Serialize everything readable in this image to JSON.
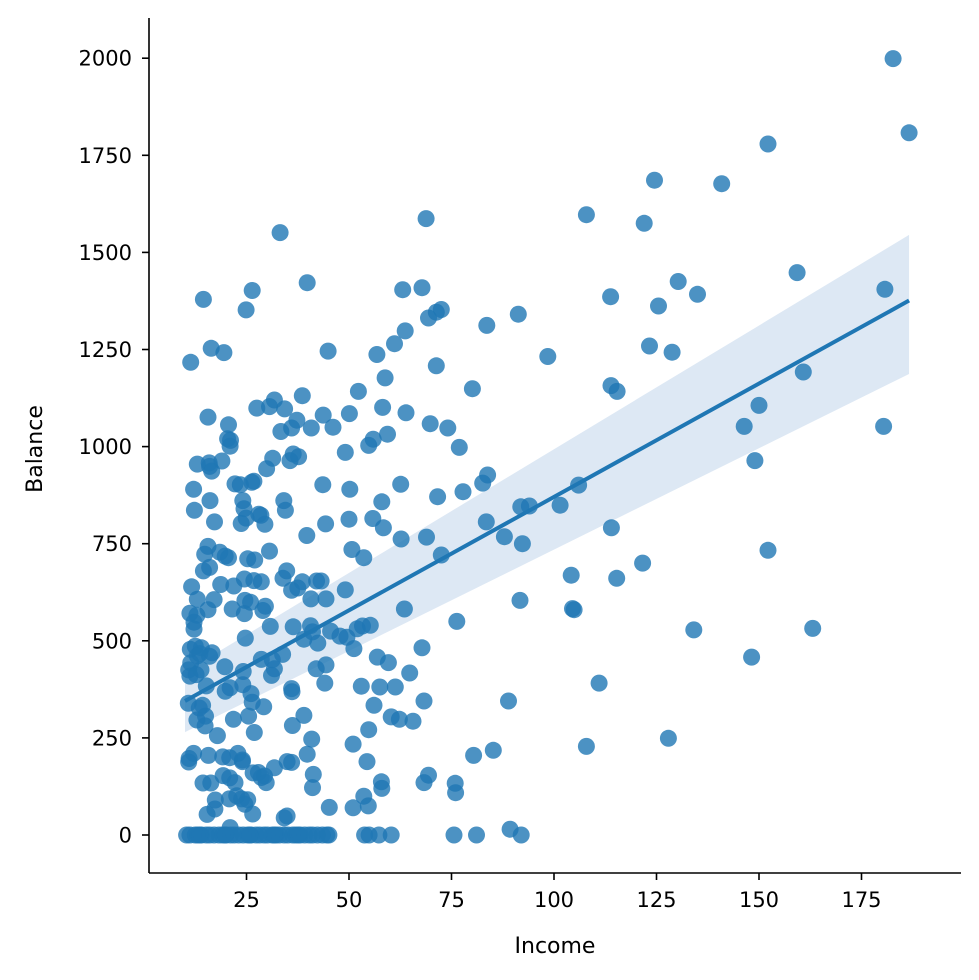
{
  "chart_data": {
    "type": "scatter",
    "title": "",
    "xlabel": "Income",
    "ylabel": "Balance",
    "xlim": [
      2,
      195
    ],
    "ylim": [
      -100,
      2100
    ],
    "xticks": [
      25,
      50,
      75,
      100,
      125,
      150,
      175
    ],
    "yticks": [
      0,
      250,
      500,
      750,
      1000,
      1250,
      1500,
      1750,
      2000
    ],
    "grid": false,
    "colors": {
      "points": "#1f77b4",
      "line": "#1f77b4",
      "band": "#c6d9ec"
    },
    "regression": {
      "x": [
        10,
        186.6
      ],
      "y": [
        345,
        1376
      ],
      "ci_upper_left": 420,
      "ci_lower_left": 265,
      "ci_upper_right": 1545,
      "ci_lower_right": 1187
    },
    "points": [
      [
        182.7,
        1999
      ],
      [
        186.6,
        1808
      ],
      [
        152.2,
        1779
      ],
      [
        124.5,
        1686
      ],
      [
        140.9,
        1677
      ],
      [
        107.9,
        1597
      ],
      [
        122.0,
        1575
      ],
      [
        68.8,
        1587
      ],
      [
        33.2,
        1551
      ],
      [
        159.3,
        1448
      ],
      [
        130.3,
        1425
      ],
      [
        39.8,
        1422
      ],
      [
        67.8,
        1409
      ],
      [
        63.1,
        1404
      ],
      [
        26.4,
        1402
      ],
      [
        180.7,
        1405
      ],
      [
        113.8,
        1386
      ],
      [
        135.0,
        1392
      ],
      [
        14.5,
        1379
      ],
      [
        125.5,
        1362
      ],
      [
        24.9,
        1352
      ],
      [
        72.5,
        1353
      ],
      [
        71.3,
        1346
      ],
      [
        69.4,
        1331
      ],
      [
        91.3,
        1341
      ],
      [
        83.6,
        1312
      ],
      [
        63.7,
        1298
      ],
      [
        61.1,
        1265
      ],
      [
        56.8,
        1237
      ],
      [
        98.5,
        1232
      ],
      [
        44.9,
        1246
      ],
      [
        16.4,
        1253
      ],
      [
        19.5,
        1242
      ],
      [
        123.3,
        1259
      ],
      [
        128.8,
        1243
      ],
      [
        11.4,
        1217
      ],
      [
        71.3,
        1208
      ],
      [
        160.8,
        1192
      ],
      [
        58.8,
        1177
      ],
      [
        80.1,
        1149
      ],
      [
        52.3,
        1142
      ],
      [
        113.9,
        1157
      ],
      [
        115.4,
        1142
      ],
      [
        38.6,
        1131
      ],
      [
        31.8,
        1120
      ],
      [
        34.3,
        1097
      ],
      [
        30.6,
        1103
      ],
      [
        27.5,
        1099
      ],
      [
        58.2,
        1101
      ],
      [
        150.0,
        1106
      ],
      [
        15.6,
        1076
      ],
      [
        43.7,
        1081
      ],
      [
        50.1,
        1085
      ],
      [
        63.9,
        1087
      ],
      [
        37.3,
        1068
      ],
      [
        46.1,
        1050
      ],
      [
        40.8,
        1048
      ],
      [
        36.0,
        1048
      ],
      [
        74.1,
        1048
      ],
      [
        33.4,
        1039
      ],
      [
        69.8,
        1059
      ],
      [
        20.6,
        1056
      ],
      [
        146.4,
        1052
      ],
      [
        180.4,
        1052
      ],
      [
        59.4,
        1032
      ],
      [
        20.4,
        1020
      ],
      [
        21.1,
        1016
      ],
      [
        55.9,
        1019
      ],
      [
        54.8,
        1003
      ],
      [
        76.9,
        998
      ],
      [
        21.0,
        1001
      ],
      [
        37.7,
        974
      ],
      [
        35.6,
        964
      ],
      [
        15.9,
        958
      ],
      [
        13.0,
        955
      ],
      [
        49.1,
        985
      ],
      [
        149.0,
        964
      ],
      [
        19.0,
        963
      ],
      [
        16.0,
        949
      ],
      [
        29.9,
        943
      ],
      [
        36.4,
        981
      ],
      [
        16.5,
        937
      ],
      [
        31.4,
        970
      ],
      [
        26.8,
        911
      ],
      [
        26.3,
        908
      ],
      [
        22.2,
        904
      ],
      [
        23.5,
        902
      ],
      [
        62.6,
        903
      ],
      [
        50.2,
        890
      ],
      [
        12.1,
        890
      ],
      [
        43.6,
        902
      ],
      [
        58.0,
        858
      ],
      [
        77.8,
        884
      ],
      [
        71.6,
        871
      ],
      [
        82.6,
        906
      ],
      [
        83.8,
        927
      ],
      [
        101.5,
        849
      ],
      [
        91.9,
        845
      ],
      [
        94.0,
        847
      ],
      [
        106.0,
        901
      ],
      [
        24.1,
        861
      ],
      [
        16.1,
        861
      ],
      [
        34.1,
        861
      ],
      [
        24.4,
        840
      ],
      [
        12.3,
        836
      ],
      [
        34.5,
        836
      ],
      [
        24.9,
        816
      ],
      [
        23.7,
        802
      ],
      [
        28.0,
        826
      ],
      [
        28.5,
        823
      ],
      [
        50.0,
        813
      ],
      [
        55.8,
        815
      ],
      [
        44.3,
        801
      ],
      [
        58.4,
        791
      ],
      [
        17.2,
        806
      ],
      [
        114.0,
        791
      ],
      [
        83.5,
        806
      ],
      [
        87.9,
        768
      ],
      [
        29.5,
        800
      ],
      [
        62.7,
        762
      ],
      [
        68.9,
        767
      ],
      [
        39.7,
        771
      ],
      [
        92.3,
        750
      ],
      [
        152.2,
        733
      ],
      [
        50.7,
        735
      ],
      [
        15.6,
        743
      ],
      [
        18.5,
        728
      ],
      [
        30.6,
        731
      ],
      [
        19.8,
        718
      ],
      [
        14.8,
        723
      ],
      [
        20.6,
        714
      ],
      [
        25.3,
        711
      ],
      [
        27.0,
        708
      ],
      [
        53.6,
        714
      ],
      [
        72.5,
        721
      ],
      [
        121.6,
        700
      ],
      [
        16.0,
        689
      ],
      [
        14.5,
        680
      ],
      [
        104.2,
        669
      ],
      [
        115.3,
        661
      ],
      [
        24.5,
        659
      ],
      [
        34.8,
        680
      ],
      [
        26.8,
        655
      ],
      [
        33.9,
        661
      ],
      [
        42.1,
        654
      ],
      [
        28.6,
        652
      ],
      [
        38.6,
        652
      ],
      [
        43.2,
        654
      ],
      [
        21.9,
        641
      ],
      [
        18.7,
        645
      ],
      [
        37.5,
        636
      ],
      [
        11.6,
        639
      ],
      [
        36.0,
        630
      ],
      [
        49.1,
        631
      ],
      [
        17.1,
        606
      ],
      [
        13.0,
        607
      ],
      [
        24.6,
        604
      ],
      [
        40.7,
        608
      ],
      [
        44.4,
        608
      ],
      [
        26.0,
        599
      ],
      [
        91.7,
        604
      ],
      [
        29.6,
        589
      ],
      [
        21.5,
        582
      ],
      [
        104.5,
        583
      ],
      [
        104.9,
        580
      ],
      [
        63.5,
        582
      ],
      [
        15.6,
        580
      ],
      [
        24.5,
        570
      ],
      [
        29.0,
        578
      ],
      [
        11.2,
        571
      ],
      [
        12.9,
        566
      ],
      [
        12.2,
        548
      ],
      [
        40.6,
        539
      ],
      [
        41.1,
        523
      ],
      [
        55.2,
        540
      ],
      [
        49.5,
        509
      ],
      [
        52.0,
        531
      ],
      [
        76.3,
        550
      ],
      [
        30.8,
        537
      ],
      [
        36.4,
        536
      ],
      [
        45.5,
        525
      ],
      [
        53.3,
        538
      ],
      [
        134.1,
        528
      ],
      [
        163.1,
        532
      ],
      [
        12.2,
        530
      ],
      [
        24.7,
        507
      ],
      [
        39.0,
        504
      ],
      [
        42.4,
        494
      ],
      [
        47.8,
        512
      ],
      [
        51.2,
        480
      ],
      [
        67.8,
        482
      ],
      [
        11.3,
        478
      ],
      [
        16.6,
        469
      ],
      [
        13.6,
        467
      ],
      [
        12.5,
        486
      ],
      [
        14.0,
        482
      ],
      [
        13.0,
        461
      ],
      [
        16.0,
        460
      ],
      [
        33.8,
        465
      ],
      [
        59.6,
        444
      ],
      [
        31.3,
        451
      ],
      [
        56.9,
        458
      ],
      [
        148.2,
        458
      ],
      [
        19.7,
        433
      ],
      [
        31.8,
        428
      ],
      [
        44.4,
        438
      ],
      [
        42.0,
        428
      ],
      [
        28.6,
        452
      ],
      [
        11.4,
        443
      ],
      [
        10.9,
        425
      ],
      [
        13.9,
        425
      ],
      [
        64.8,
        417
      ],
      [
        11.2,
        409
      ],
      [
        24.2,
        421
      ],
      [
        31.1,
        411
      ],
      [
        12.7,
        413
      ],
      [
        44.1,
        391
      ],
      [
        21.0,
        379
      ],
      [
        15.2,
        384
      ],
      [
        24.1,
        387
      ],
      [
        53.0,
        383
      ],
      [
        57.5,
        381
      ],
      [
        61.3,
        381
      ],
      [
        36.0,
        377
      ],
      [
        26.1,
        364
      ],
      [
        19.8,
        370
      ],
      [
        36.1,
        369
      ],
      [
        111.0,
        391
      ],
      [
        10.8,
        339
      ],
      [
        13.5,
        327
      ],
      [
        14.3,
        334
      ],
      [
        29.2,
        330
      ],
      [
        26.4,
        342
      ],
      [
        56.1,
        334
      ],
      [
        68.3,
        345
      ],
      [
        88.9,
        345
      ],
      [
        60.3,
        304
      ],
      [
        15.0,
        306
      ],
      [
        21.8,
        298
      ],
      [
        39.0,
        308
      ],
      [
        25.5,
        306
      ],
      [
        62.3,
        298
      ],
      [
        65.6,
        293
      ],
      [
        12.9,
        296
      ],
      [
        14.9,
        281
      ],
      [
        26.9,
        264
      ],
      [
        17.9,
        256
      ],
      [
        36.2,
        282
      ],
      [
        54.8,
        271
      ],
      [
        51.0,
        234
      ],
      [
        85.2,
        218
      ],
      [
        107.9,
        228
      ],
      [
        127.9,
        249
      ],
      [
        40.9,
        247
      ],
      [
        12.1,
        210
      ],
      [
        15.7,
        205
      ],
      [
        19.2,
        201
      ],
      [
        20.9,
        199
      ],
      [
        22.9,
        210
      ],
      [
        34.9,
        189
      ],
      [
        39.8,
        208
      ],
      [
        24.0,
        189
      ],
      [
        80.4,
        205
      ],
      [
        10.9,
        188
      ],
      [
        11.0,
        197
      ],
      [
        24.0,
        193
      ],
      [
        54.4,
        189
      ],
      [
        36.0,
        187
      ],
      [
        69.4,
        154
      ],
      [
        26.6,
        160
      ],
      [
        27.9,
        161
      ],
      [
        19.3,
        153
      ],
      [
        31.8,
        173
      ],
      [
        29.4,
        152
      ],
      [
        41.3,
        156
      ],
      [
        20.9,
        147
      ],
      [
        14.4,
        134
      ],
      [
        16.3,
        134
      ],
      [
        22.2,
        135
      ],
      [
        28.6,
        148
      ],
      [
        29.8,
        135
      ],
      [
        41.1,
        122
      ],
      [
        57.9,
        137
      ],
      [
        58.0,
        120
      ],
      [
        68.3,
        135
      ],
      [
        75.9,
        133
      ],
      [
        76.0,
        109
      ],
      [
        22.6,
        101
      ],
      [
        23.8,
        93
      ],
      [
        20.8,
        93
      ],
      [
        25.3,
        91
      ],
      [
        17.4,
        90
      ],
      [
        24.6,
        79
      ],
      [
        53.6,
        100
      ],
      [
        45.2,
        71
      ],
      [
        51.0,
        70
      ],
      [
        54.7,
        75
      ],
      [
        17.3,
        67
      ],
      [
        15.4,
        53
      ],
      [
        26.5,
        54
      ],
      [
        34.2,
        44
      ],
      [
        34.9,
        49
      ],
      [
        21.0,
        19
      ],
      [
        89.3,
        15
      ],
      [
        10.4,
        0
      ],
      [
        11.2,
        0
      ],
      [
        12.5,
        0
      ],
      [
        13.1,
        0
      ],
      [
        14.0,
        0
      ],
      [
        15.2,
        0
      ],
      [
        16.0,
        0
      ],
      [
        17.1,
        0
      ],
      [
        18.3,
        0
      ],
      [
        19.2,
        0
      ],
      [
        20.0,
        0
      ],
      [
        21.1,
        0
      ],
      [
        22.0,
        0
      ],
      [
        23.1,
        0
      ],
      [
        24.2,
        0
      ],
      [
        25.3,
        0
      ],
      [
        26.1,
        0
      ],
      [
        27.3,
        0
      ],
      [
        28.2,
        0
      ],
      [
        29.3,
        0
      ],
      [
        30.1,
        0
      ],
      [
        31.3,
        0
      ],
      [
        32.2,
        0
      ],
      [
        33.0,
        0
      ],
      [
        34.2,
        0
      ],
      [
        35.1,
        0
      ],
      [
        36.3,
        0
      ],
      [
        37.0,
        0
      ],
      [
        38.1,
        0
      ],
      [
        39.2,
        0
      ],
      [
        40.3,
        0
      ],
      [
        41.1,
        0
      ],
      [
        42.3,
        0
      ],
      [
        43.5,
        0
      ],
      [
        44.6,
        0
      ],
      [
        45.1,
        0
      ],
      [
        53.8,
        0
      ],
      [
        54.9,
        0
      ],
      [
        57.3,
        0
      ],
      [
        60.3,
        0
      ],
      [
        75.6,
        0
      ],
      [
        81.1,
        0
      ],
      [
        92.0,
        0
      ],
      [
        13.6,
        0
      ],
      [
        19.8,
        0
      ],
      [
        25.8,
        0
      ],
      [
        31.8,
        0
      ],
      [
        37.6,
        0
      ]
    ]
  }
}
